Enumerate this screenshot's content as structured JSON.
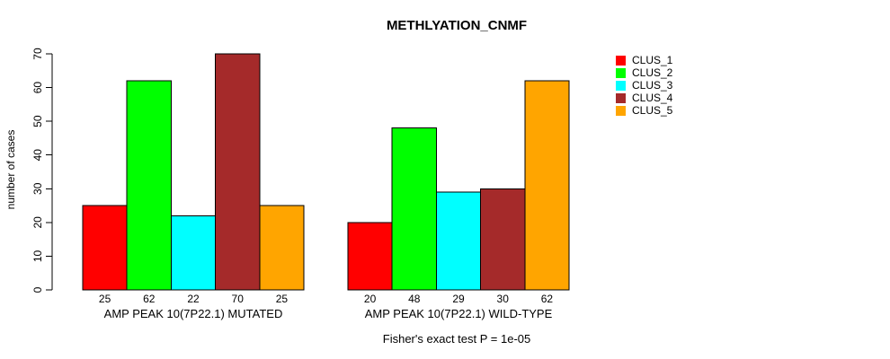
{
  "chart_data": {
    "type": "bar",
    "title": "METHLYATION_CNMF",
    "ylabel": "number of cases",
    "ylim": [
      0,
      70
    ],
    "yticks": [
      0,
      10,
      20,
      30,
      40,
      50,
      60,
      70
    ],
    "grid": false,
    "legend_position": "right-outside",
    "categories": [
      "AMP PEAK 10(7P22.1) MUTATED",
      "AMP PEAK 10(7P22.1) WILD-TYPE"
    ],
    "series": [
      {
        "name": "CLUS_1",
        "color": "#FF0000",
        "values": [
          25,
          20
        ]
      },
      {
        "name": "CLUS_2",
        "color": "#00FF00",
        "values": [
          62,
          48
        ]
      },
      {
        "name": "CLUS_3",
        "color": "#00FFFF",
        "values": [
          22,
          29
        ]
      },
      {
        "name": "CLUS_4",
        "color": "#A52A2A",
        "values": [
          70,
          30
        ]
      },
      {
        "name": "CLUS_5",
        "color": "#FFA500",
        "values": [
          25,
          62
        ]
      }
    ],
    "bar_value_labels": {
      "group_0": [
        25,
        62,
        22,
        70,
        25
      ],
      "group_1": [
        20,
        48,
        29,
        30,
        62
      ]
    },
    "footnote": "Fisher's exact test P = 1e-05"
  }
}
